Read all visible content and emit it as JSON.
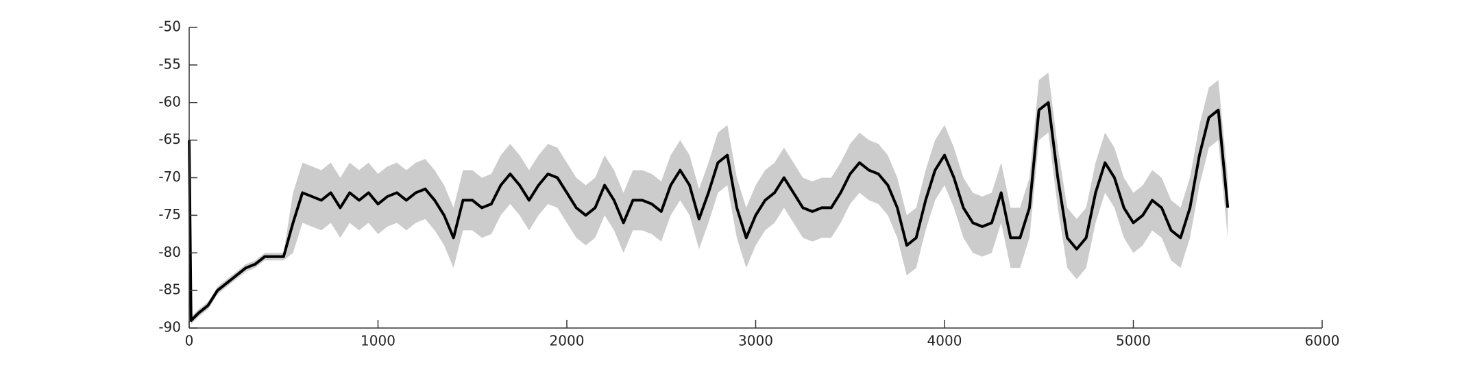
{
  "chart_data": {
    "type": "line",
    "xlim": [
      0,
      6000
    ],
    "xticks": [
      0,
      1000,
      2000,
      3000,
      4000,
      5000,
      6000
    ],
    "ylim": [
      -90,
      -50
    ],
    "yticks": [
      -90,
      -85,
      -80,
      -75,
      -70,
      -65,
      -60,
      -55,
      -50
    ],
    "x": [
      0,
      10,
      50,
      100,
      150,
      200,
      250,
      300,
      350,
      400,
      450,
      500,
      550,
      600,
      650,
      700,
      750,
      800,
      850,
      900,
      950,
      1000,
      1050,
      1100,
      1150,
      1200,
      1250,
      1300,
      1350,
      1400,
      1450,
      1500,
      1550,
      1600,
      1650,
      1700,
      1750,
      1800,
      1850,
      1900,
      1950,
      2000,
      2050,
      2100,
      2150,
      2200,
      2250,
      2300,
      2350,
      2400,
      2450,
      2500,
      2550,
      2600,
      2650,
      2700,
      2750,
      2800,
      2850,
      2900,
      2950,
      3000,
      3050,
      3100,
      3150,
      3200,
      3250,
      3300,
      3350,
      3400,
      3450,
      3500,
      3550,
      3600,
      3650,
      3700,
      3750,
      3800,
      3850,
      3900,
      3950,
      4000,
      4050,
      4100,
      4150,
      4200,
      4250,
      4300,
      4350,
      4400,
      4450,
      4500,
      4550,
      4600,
      4650,
      4700,
      4750,
      4800,
      4850,
      4900,
      4950,
      5000,
      5050,
      5100,
      5150,
      5200,
      5250,
      5300,
      5350,
      5400,
      5450,
      5500
    ],
    "band": {
      "color": "#cccccc",
      "upper": [
        -64.5,
        -88.5,
        -87.5,
        -86.5,
        -84.5,
        -83.5,
        -82.5,
        -81.5,
        -81,
        -80,
        -80,
        -80,
        -72,
        -68,
        -68.5,
        -69,
        -68,
        -70,
        -68,
        -69,
        -68,
        -69.5,
        -68.5,
        -68,
        -69,
        -68,
        -67.5,
        -69,
        -71,
        -74,
        -69,
        -69,
        -70,
        -69.5,
        -67,
        -65.5,
        -67,
        -69,
        -67,
        -65.5,
        -66,
        -68,
        -70,
        -71,
        -70,
        -67,
        -69,
        -72,
        -69,
        -69,
        -69.5,
        -70.5,
        -67,
        -65,
        -67,
        -71.5,
        -68,
        -64,
        -63,
        -70,
        -74,
        -71,
        -69,
        -68,
        -66,
        -68,
        -70,
        -70.5,
        -70,
        -70,
        -68,
        -65.5,
        -64,
        -65,
        -65.5,
        -67,
        -70,
        -75,
        -74,
        -69,
        -65,
        -63,
        -66,
        -70,
        -72,
        -72.5,
        -72,
        -68,
        -74,
        -74,
        -70,
        -57,
        -56,
        -66,
        -74,
        -75.5,
        -74,
        -68,
        -64,
        -66,
        -70,
        -72,
        -71,
        -69,
        -70,
        -73,
        -74,
        -70,
        -63,
        -58,
        -57,
        -70
      ],
      "lower": [
        -65.5,
        -89.5,
        -88.5,
        -87.5,
        -85.5,
        -84.5,
        -83.5,
        -82.5,
        -82,
        -81,
        -81,
        -81,
        -80,
        -76,
        -76.5,
        -77,
        -76,
        -78,
        -76,
        -77,
        -76,
        -77.5,
        -76.5,
        -76,
        -77,
        -76,
        -75.5,
        -77,
        -79,
        -82,
        -77,
        -77,
        -78,
        -77.5,
        -75,
        -73.5,
        -75,
        -77,
        -75,
        -73.5,
        -74,
        -76,
        -78,
        -79,
        -78,
        -75,
        -77,
        -80,
        -77,
        -77,
        -77.5,
        -78.5,
        -75,
        -73,
        -75,
        -79.5,
        -76,
        -72,
        -71,
        -78,
        -82,
        -79,
        -77,
        -76,
        -74,
        -76,
        -78,
        -78.5,
        -78,
        -78,
        -76,
        -73.5,
        -72,
        -73,
        -73.5,
        -75,
        -78,
        -83,
        -82,
        -77,
        -73,
        -71,
        -74,
        -78,
        -80,
        -80.5,
        -80,
        -76,
        -82,
        -82,
        -78,
        -65,
        -64,
        -74,
        -82,
        -83.5,
        -82,
        -76,
        -72,
        -74,
        -78,
        -80,
        -79,
        -77,
        -78,
        -81,
        -82,
        -78,
        -71,
        -66,
        -65,
        -78
      ]
    },
    "series": [
      {
        "color": "#000000",
        "values": [
          -65,
          -89,
          -88,
          -87,
          -85,
          -84,
          -83,
          -82,
          -81.5,
          -80.5,
          -80.5,
          -80.5,
          -76,
          -72,
          -72.5,
          -73,
          -72,
          -74,
          -72,
          -73,
          -72,
          -73.5,
          -72.5,
          -72,
          -73,
          -72,
          -71.5,
          -73,
          -75,
          -78,
          -73,
          -73,
          -74,
          -73.5,
          -71,
          -69.5,
          -71,
          -73,
          -71,
          -69.5,
          -70,
          -72,
          -74,
          -75,
          -74,
          -71,
          -73,
          -76,
          -73,
          -73,
          -73.5,
          -74.5,
          -71,
          -69,
          -71,
          -75.5,
          -72,
          -68,
          -67,
          -74,
          -78,
          -75,
          -73,
          -72,
          -70,
          -72,
          -74,
          -74.5,
          -74,
          -74,
          -72,
          -69.5,
          -68,
          -69,
          -69.5,
          -71,
          -74,
          -79,
          -78,
          -73,
          -69,
          -67,
          -70,
          -74,
          -76,
          -76.5,
          -76,
          -72,
          -78,
          -78,
          -74,
          -61,
          -60,
          -70,
          -78,
          -79.5,
          -78,
          -72,
          -68,
          -70,
          -74,
          -76,
          -75,
          -73,
          -74,
          -77,
          -78,
          -74,
          -67,
          -62,
          -61,
          -74
        ]
      }
    ]
  }
}
